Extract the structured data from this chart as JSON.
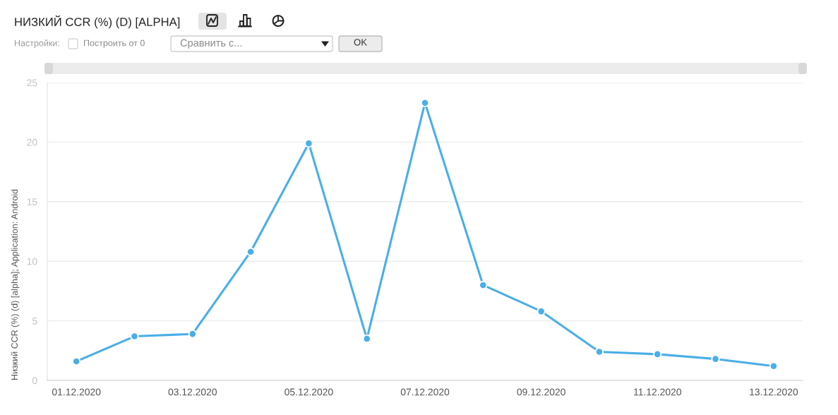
{
  "chart_data": {
    "type": "line",
    "title": "НИЗКИЙ CCR (%) (D) [ALPHA]",
    "ylabel": "Низкий CCR (%) (d) [alpha]; Application: Android",
    "categories": [
      "01.12.2020",
      null,
      "03.12.2020",
      null,
      "05.12.2020",
      null,
      "07.12.2020",
      null,
      "09.12.2020",
      null,
      "11.12.2020",
      null,
      "13.12.2020"
    ],
    "series": [
      {
        "color": "#4aaee8",
        "values": [
          1.6,
          3.7,
          3.9,
          10.8,
          19.9,
          3.5,
          23.3,
          8.0,
          5.8,
          2.4,
          2.2,
          1.8,
          1.2
        ]
      }
    ],
    "ylim": [
      0,
      25
    ],
    "yticks": [
      0,
      5,
      10,
      15,
      20,
      25
    ],
    "grid": "y",
    "marker": "circle",
    "line_style": "solid",
    "annotations": [
      "Настройки:",
      "Построить от 0",
      "Сравнить с...",
      "OK"
    ]
  }
}
